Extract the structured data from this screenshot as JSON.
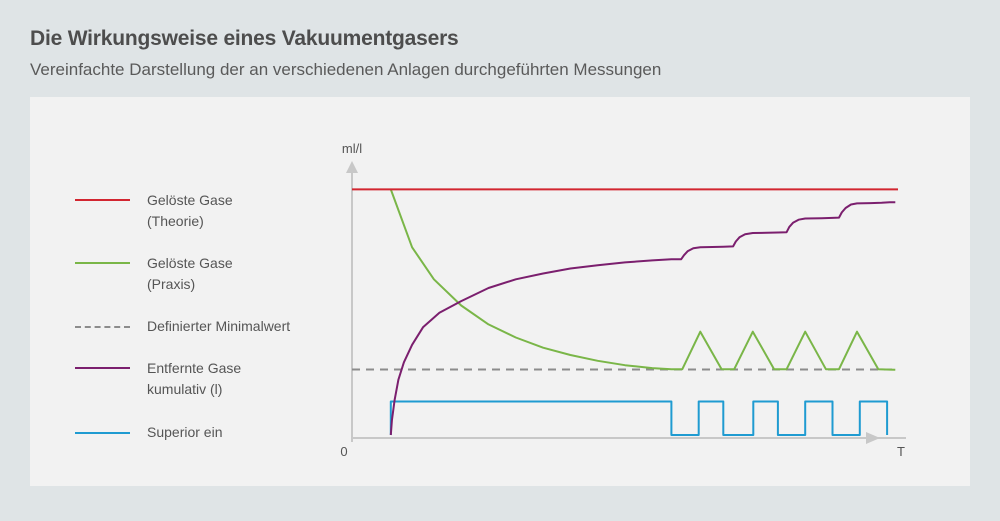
{
  "title": "Die Wirkungsweise eines Vakuumentgasers",
  "subtitle": "Vereinfachte Darstellung der an verschiedenen Anlagen durchgeführten Messungen",
  "legend": [
    {
      "label": "Gelöste Gase\n(Theorie)",
      "color": "#d22630",
      "style": "solid"
    },
    {
      "label": "Gelöste Gase\n(Praxis)",
      "color": "#7ab648",
      "style": "solid"
    },
    {
      "label": "Definierter Minimalwert",
      "color": "#8c8c8c",
      "style": "dashed"
    },
    {
      "label": "Entfernte Gase\nkumulativ (l)",
      "color": "#7b1f6e",
      "style": "solid"
    },
    {
      "label": "Superior ein",
      "color": "#1f9bd1",
      "style": "solid"
    }
  ],
  "chart_data": {
    "type": "line",
    "xlabel": "T",
    "ylabel": "ml/l",
    "origin_label": "0",
    "xlim": [
      0,
      100
    ],
    "ylim": [
      0,
      100
    ],
    "grid": false,
    "legend_position": "left",
    "series": [
      {
        "name": "Gelöste Gase (Theorie)",
        "color": "#d22630",
        "x": [
          0,
          100
        ],
        "y": [
          84.4,
          84.4
        ]
      },
      {
        "name": "Gelöste Gase (Praxis)",
        "color": "#7ab648",
        "x": [
          7.1,
          11,
          15,
          20,
          25,
          30,
          35,
          40,
          45,
          50,
          55,
          58.5,
          60.5,
          63.8,
          67.7,
          70,
          73.4,
          77.3,
          79.6,
          83,
          86.8,
          89.2,
          92.5,
          96.4,
          99.5
        ],
        "y": [
          84.4,
          64.5,
          53.5,
          44.5,
          38.0,
          33.5,
          30.0,
          27.5,
          25.5,
          24.0,
          23.0,
          22.6,
          22.6,
          35.5,
          22.6,
          22.6,
          35.5,
          22.6,
          22.6,
          35.5,
          22.6,
          22.6,
          35.5,
          22.6,
          22.4
        ]
      },
      {
        "name": "Definierter Minimalwert",
        "color": "#8c8c8c",
        "x": [
          0,
          100
        ],
        "y": [
          22.5,
          22.5
        ]
      },
      {
        "name": "Entfernte Gase kumulativ (l)",
        "color": "#7b1f6e",
        "x": [
          7.1,
          7.3,
          7.8,
          8.5,
          9.5,
          11,
          13,
          16,
          20,
          25,
          30,
          35,
          40,
          45,
          50,
          55,
          58.5,
          60.3,
          60.8,
          61.5,
          62.5,
          63.8,
          66,
          68,
          69.8,
          70.3,
          71,
          72,
          73.4,
          76,
          78,
          79.6,
          80.1,
          80.8,
          81.8,
          83,
          86,
          88,
          89.2,
          89.7,
          90.4,
          91.4,
          92.5,
          95,
          97,
          98.5,
          99.5
        ],
        "y": [
          0,
          5,
          12,
          19,
          25,
          31,
          37,
          42,
          46,
          50.5,
          53.5,
          55.5,
          57.2,
          58.3,
          59.3,
          60,
          60.4,
          60.4,
          61.8,
          63.2,
          64.2,
          64.5,
          64.6,
          64.7,
          64.8,
          66.5,
          68,
          69,
          69.4,
          69.5,
          69.6,
          69.7,
          71.5,
          73,
          74,
          74.4,
          74.5,
          74.6,
          74.7,
          76.5,
          78,
          79.2,
          79.6,
          79.7,
          79.8,
          80,
          80
        ]
      },
      {
        "name": "Superior ein",
        "color": "#1f9bd1",
        "x": [
          7.1,
          7.1,
          58.5,
          58.5,
          63.5,
          63.5,
          68,
          68,
          73.5,
          73.5,
          78,
          78,
          83,
          83,
          88,
          88,
          93,
          93,
          98,
          98
        ],
        "y": [
          0,
          11.5,
          11.5,
          0,
          0,
          11.5,
          11.5,
          0,
          0,
          11.5,
          11.5,
          0,
          0,
          11.5,
          11.5,
          0,
          0,
          11.5,
          11.5,
          0
        ]
      }
    ]
  }
}
